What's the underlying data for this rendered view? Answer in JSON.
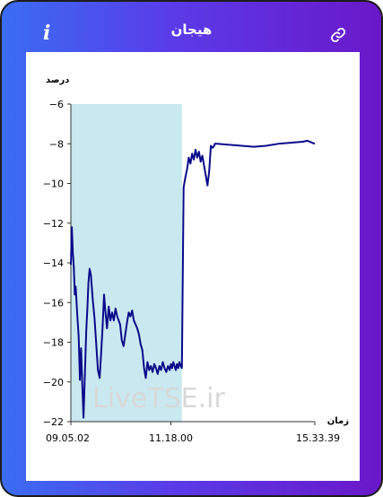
{
  "header": {
    "title": "هیجان",
    "info_icon": "info-icon",
    "link_icon": "link-icon"
  },
  "colors": {
    "frame_start": "#3a6df2",
    "frame_end": "#6a18c9",
    "line": "#0a0a8a",
    "band": "#c9e8f0"
  },
  "chart_data": {
    "type": "line",
    "ylabel": "درصد",
    "xlabel": "زمان",
    "ylim": [
      -22,
      -6
    ],
    "yticks": [
      -6,
      -8,
      -10,
      -12,
      -14,
      -16,
      -18,
      -20,
      -22
    ],
    "xticks": [
      "09.05.02",
      "11.18.00",
      "15.33.39"
    ],
    "xtick_positions": [
      0,
      0.41,
      1
    ],
    "watermark": "LiveTSE.ir",
    "band": {
      "from": -22,
      "to": -6,
      "x_end": 0.455
    },
    "series": [
      {
        "x": [
          0,
          0.004,
          0.008,
          0.012,
          0.016,
          0.02,
          0.026,
          0.032,
          0.037,
          0.042,
          0.047,
          0.052,
          0.058,
          0.063,
          0.068,
          0.072,
          0.077,
          0.082,
          0.09,
          0.097,
          0.104,
          0.111,
          0.118,
          0.124,
          0.13,
          0.136,
          0.142,
          0.148,
          0.155,
          0.162,
          0.169,
          0.176,
          0.183,
          0.19,
          0.196,
          0.202,
          0.209,
          0.216,
          0.223,
          0.23,
          0.237,
          0.244,
          0.251,
          0.258,
          0.265,
          0.272,
          0.279,
          0.286,
          0.293,
          0.3,
          0.307,
          0.314,
          0.321,
          0.328,
          0.335,
          0.342,
          0.349,
          0.356,
          0.363,
          0.37,
          0.377,
          0.384,
          0.391,
          0.398,
          0.405,
          0.41,
          0.415,
          0.42,
          0.425,
          0.43,
          0.435,
          0.44,
          0.445,
          0.45,
          0.455,
          0.462,
          0.469,
          0.476,
          0.483,
          0.49,
          0.497,
          0.504,
          0.511,
          0.518,
          0.525,
          0.532,
          0.539,
          0.546,
          0.553,
          0.56,
          0.567,
          0.574,
          0.581,
          0.588,
          0.55,
          0.56,
          0.6,
          0.65,
          0.7,
          0.75,
          0.8,
          0.85,
          0.9,
          0.95,
          0.97,
          1
        ],
        "values": [
          -14.1,
          -12.2,
          -13.5,
          -14.2,
          -15.6,
          -15.2,
          -16.6,
          -17.7,
          -19.9,
          -18.3,
          -20.2,
          -21.8,
          -19.4,
          -17.5,
          -16.2,
          -15.0,
          -14.3,
          -14.6,
          -15.9,
          -16.8,
          -18.1,
          -19.4,
          -19.8,
          -18.6,
          -17.2,
          -15.6,
          -16.5,
          -17.3,
          -16.2,
          -16.9,
          -16.5,
          -16.9,
          -16.3,
          -16.7,
          -16.9,
          -17.1,
          -17.9,
          -18.2,
          -17.6,
          -17.0,
          -16.5,
          -16.7,
          -16.4,
          -16.9,
          -17.1,
          -17.3,
          -17.6,
          -18.1,
          -18.4,
          -19.3,
          -19.8,
          -19.0,
          -19.4,
          -19.2,
          -19.5,
          -19.1,
          -19.3,
          -19.6,
          -19.2,
          -19.4,
          -19.0,
          -19.3,
          -19.5,
          -19.2,
          -19.4,
          -19.1,
          -19.3,
          -19.0,
          -19.2,
          -19.4,
          -19.1,
          -19.3,
          -19.0,
          -19.2,
          -19.3,
          -10.2,
          -9.7,
          -9.3,
          -8.7,
          -9.0,
          -8.5,
          -8.8,
          -8.3,
          -8.7,
          -8.4,
          -8.9,
          -8.6,
          -9.1,
          -9.6,
          -10.1,
          -9.4,
          -8.1,
          -8.2,
          -8.1,
          -8.0,
          -8.0,
          -8.0,
          -8.05,
          -8.1,
          -8.15,
          -8.1,
          -8.0,
          -7.95,
          -7.9,
          -7.85,
          -8.0
        ]
      }
    ]
  }
}
